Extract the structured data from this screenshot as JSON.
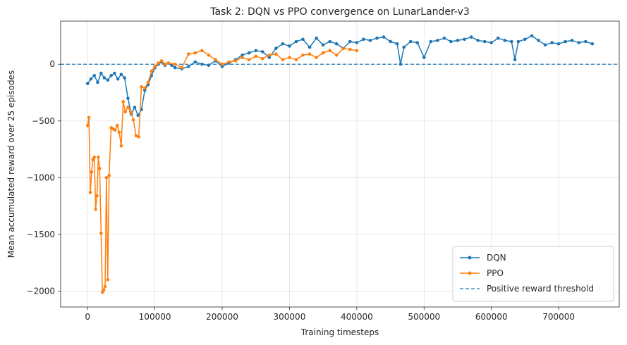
{
  "chart_data": {
    "type": "line",
    "title": "Task 2: DQN vs PPO convergence on LunarLander-v3",
    "xlabel": "Training timesteps",
    "ylabel": "Mean accumulated reward over 25 episodes",
    "xlim": [
      -40000,
      790000
    ],
    "ylim": [
      -2140,
      380
    ],
    "xticks": [
      0,
      100000,
      200000,
      300000,
      400000,
      500000,
      600000,
      700000
    ],
    "xtick_labels": [
      "0",
      "100000",
      "200000",
      "300000",
      "400000",
      "500000",
      "600000",
      "700000"
    ],
    "yticks": [
      0,
      -500,
      -1000,
      -1500,
      -2000
    ],
    "ytick_labels": [
      "0",
      "−500",
      "−1000",
      "−1500",
      "−2000"
    ],
    "grid": true,
    "legend_position": "bottom-right",
    "threshold": {
      "name": "Positive reward threshold",
      "y": 0,
      "color": "#1f77b4",
      "style": "dashed"
    },
    "series": [
      {
        "name": "DQN",
        "color": "#1f77b4",
        "x": [
          0,
          5000,
          10000,
          15000,
          20000,
          25000,
          30000,
          35000,
          40000,
          45000,
          50000,
          55000,
          60000,
          65000,
          70000,
          75000,
          80000,
          85000,
          90000,
          95000,
          100000,
          105000,
          110000,
          115000,
          120000,
          125000,
          130000,
          140000,
          150000,
          160000,
          170000,
          180000,
          190000,
          200000,
          210000,
          220000,
          230000,
          240000,
          250000,
          260000,
          270000,
          280000,
          290000,
          300000,
          310000,
          320000,
          330000,
          340000,
          350000,
          360000,
          370000,
          380000,
          390000,
          400000,
          410000,
          420000,
          430000,
          440000,
          450000,
          460000,
          465000,
          470000,
          480000,
          490000,
          500000,
          510000,
          520000,
          530000,
          540000,
          550000,
          560000,
          570000,
          580000,
          590000,
          600000,
          610000,
          620000,
          630000,
          635000,
          640000,
          650000,
          660000,
          670000,
          680000,
          690000,
          700000,
          710000,
          720000,
          730000,
          740000,
          750000
        ],
        "y": [
          -170,
          -130,
          -100,
          -160,
          -80,
          -120,
          -140,
          -100,
          -80,
          -130,
          -90,
          -120,
          -300,
          -440,
          -380,
          -450,
          -400,
          -230,
          -180,
          -100,
          -30,
          0,
          20,
          -10,
          10,
          -10,
          -30,
          -40,
          -20,
          20,
          0,
          -10,
          30,
          -20,
          10,
          40,
          80,
          100,
          120,
          110,
          60,
          140,
          180,
          160,
          200,
          220,
          150,
          230,
          170,
          200,
          180,
          140,
          200,
          190,
          220,
          210,
          230,
          240,
          200,
          180,
          0,
          150,
          200,
          190,
          60,
          200,
          210,
          230,
          200,
          210,
          220,
          240,
          210,
          200,
          190,
          230,
          210,
          200,
          40,
          200,
          220,
          250,
          210,
          170,
          190,
          180,
          200,
          210,
          190,
          200,
          180
        ]
      },
      {
        "name": "PPO",
        "color": "#ff7f0e",
        "x": [
          0,
          2000,
          4000,
          6000,
          8000,
          10000,
          12000,
          14000,
          16000,
          18000,
          20000,
          22000,
          24000,
          26000,
          28000,
          30000,
          32000,
          35000,
          38000,
          41000,
          44000,
          47000,
          50000,
          53000,
          56000,
          60000,
          64000,
          68000,
          72000,
          76000,
          80000,
          85000,
          90000,
          95000,
          100000,
          105000,
          110000,
          115000,
          120000,
          130000,
          140000,
          150000,
          160000,
          170000,
          180000,
          190000,
          200000,
          210000,
          220000,
          230000,
          240000,
          250000,
          260000,
          270000,
          280000,
          290000,
          300000,
          310000,
          320000,
          330000,
          340000,
          350000,
          360000,
          370000,
          380000,
          390000,
          400000
        ],
        "y": [
          -540,
          -470,
          -1130,
          -950,
          -840,
          -820,
          -1280,
          -1160,
          -820,
          -920,
          -1490,
          -2010,
          -1990,
          -1960,
          -1000,
          -1900,
          -980,
          -560,
          -570,
          -580,
          -540,
          -600,
          -720,
          -330,
          -420,
          -380,
          -420,
          -490,
          -630,
          -640,
          -200,
          -210,
          -160,
          -60,
          -20,
          10,
          30,
          0,
          10,
          0,
          -30,
          90,
          100,
          120,
          80,
          40,
          0,
          20,
          30,
          60,
          40,
          70,
          50,
          80,
          90,
          40,
          60,
          40,
          80,
          90,
          60,
          100,
          120,
          80,
          140,
          130,
          120
        ]
      }
    ]
  }
}
